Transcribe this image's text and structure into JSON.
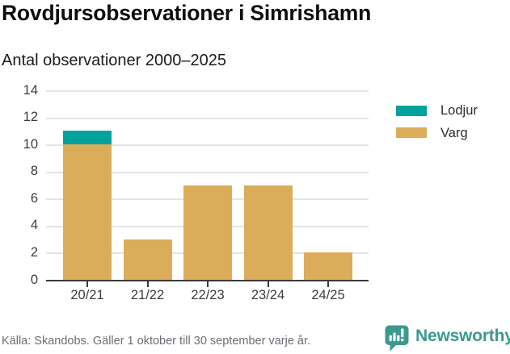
{
  "header": {
    "title": "Rovdjursobservationer i Simrishamn",
    "subtitle": "Antal observationer 2000–2025"
  },
  "chart_data": {
    "type": "bar",
    "stacked": true,
    "title": "Rovdjursobservationer i Simrishamn",
    "subtitle": "Antal observationer 2000–2025",
    "categories": [
      "20/21",
      "21/22",
      "22/23",
      "23/24",
      "24/25"
    ],
    "series": [
      {
        "name": "Varg",
        "color": "#DBAD5B",
        "values": [
          10,
          3,
          7,
          7,
          2
        ]
      },
      {
        "name": "Lodjur",
        "color": "#00A39B",
        "values": [
          1,
          0,
          0,
          0,
          0
        ]
      }
    ],
    "totals": [
      11,
      3,
      7,
      7,
      2
    ],
    "xlabel": "",
    "ylabel": "",
    "ylim": [
      0,
      14
    ],
    "yticks": [
      0,
      2,
      4,
      6,
      8,
      10,
      12,
      14
    ],
    "grid": "horizontal",
    "legend_position": "right",
    "legend_order": [
      "Lodjur",
      "Varg"
    ]
  },
  "legend": {
    "items": [
      {
        "label": "Lodjur",
        "color": "#00A39B"
      },
      {
        "label": "Varg",
        "color": "#DBAD5B"
      }
    ]
  },
  "footer": {
    "source": "Källa: Skandobs. Gäller 1 oktober till 30 september varje år.",
    "brand": "Newsworthy"
  },
  "colors": {
    "lodjur": "#00A39B",
    "varg": "#DBAD5B",
    "gridline": "#E4E4E4",
    "axis": "#3B3B3B",
    "tick_text": "#3D3D3D",
    "source_text": "#6D6D76",
    "brand_teal": "#3B998F"
  }
}
